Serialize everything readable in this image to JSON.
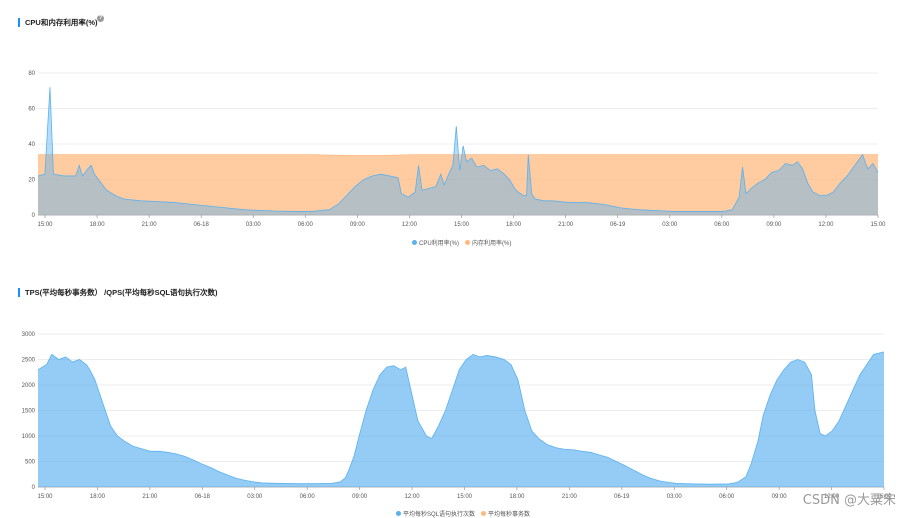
{
  "chart_data": [
    {
      "type": "area",
      "title": "CPU和内存利用率(%)",
      "ylim": [
        0,
        80
      ],
      "yticks": [
        0,
        20,
        40,
        60,
        80
      ],
      "x_tick_labels": [
        "15:00",
        "18:00",
        "21:00",
        "06-18",
        "03:00",
        "06:00",
        "09:00",
        "12:00",
        "15:00",
        "18:00",
        "21:00",
        "06-19",
        "03:00",
        "06:00",
        "09:00",
        "12:00",
        "15:00"
      ],
      "grid": true,
      "legend_placement": "bottom-center",
      "series": [
        {
          "name": "CPU利用率(%)",
          "color": "#5ab1ef",
          "points": [
            [
              0,
              22
            ],
            [
              0.4,
              23
            ],
            [
              0.7,
              72
            ],
            [
              0.9,
              23
            ],
            [
              1.5,
              22
            ],
            [
              2.2,
              22
            ],
            [
              2.4,
              28
            ],
            [
              2.6,
              22
            ],
            [
              2.9,
              26
            ],
            [
              3.1,
              28
            ],
            [
              3.3,
              23
            ],
            [
              3.6,
              19
            ],
            [
              4,
              14
            ],
            [
              4.5,
              11
            ],
            [
              5,
              9
            ],
            [
              6,
              8
            ],
            [
              7,
              7.5
            ],
            [
              8,
              7
            ],
            [
              9,
              6
            ],
            [
              10,
              5
            ],
            [
              11,
              4
            ],
            [
              12,
              3
            ],
            [
              13,
              2.5
            ],
            [
              14,
              2.2
            ],
            [
              15,
              2
            ],
            [
              16,
              2
            ],
            [
              17,
              3
            ],
            [
              17.5,
              6
            ],
            [
              18,
              11
            ],
            [
              18.5,
              16
            ],
            [
              19,
              20
            ],
            [
              19.5,
              22
            ],
            [
              20,
              23
            ],
            [
              20.5,
              22
            ],
            [
              21,
              21
            ],
            [
              21.2,
              12
            ],
            [
              21.6,
              10
            ],
            [
              22,
              13
            ],
            [
              22.2,
              28
            ],
            [
              22.4,
              14
            ],
            [
              22.8,
              15
            ],
            [
              23.2,
              16
            ],
            [
              23.5,
              23
            ],
            [
              23.7,
              17
            ],
            [
              24,
              24
            ],
            [
              24.2,
              28
            ],
            [
              24.4,
              50
            ],
            [
              24.6,
              25
            ],
            [
              24.8,
              39
            ],
            [
              25,
              30
            ],
            [
              25.3,
              32
            ],
            [
              25.6,
              27
            ],
            [
              26,
              28
            ],
            [
              26.4,
              25
            ],
            [
              26.8,
              26
            ],
            [
              27.2,
              23
            ],
            [
              27.5,
              20
            ],
            [
              27.8,
              15
            ],
            [
              28,
              13
            ],
            [
              28.3,
              11
            ],
            [
              28.5,
              11
            ],
            [
              28.6,
              34
            ],
            [
              28.8,
              12
            ],
            [
              29,
              9
            ],
            [
              29.5,
              8
            ],
            [
              30,
              8
            ],
            [
              31,
              7
            ],
            [
              32,
              7
            ],
            [
              33,
              6
            ],
            [
              34,
              4
            ],
            [
              35,
              3
            ],
            [
              36,
              2.5
            ],
            [
              37,
              2
            ],
            [
              38,
              2
            ],
            [
              39,
              2
            ],
            [
              40,
              2
            ],
            [
              40.5,
              3
            ],
            [
              40.9,
              10
            ],
            [
              41.1,
              27
            ],
            [
              41.3,
              12
            ],
            [
              41.6,
              15
            ],
            [
              42,
              18
            ],
            [
              42.4,
              20
            ],
            [
              42.8,
              24
            ],
            [
              43.2,
              25
            ],
            [
              43.6,
              29
            ],
            [
              44,
              28
            ],
            [
              44.3,
              30
            ],
            [
              44.6,
              26
            ],
            [
              44.9,
              18
            ],
            [
              45.2,
              13
            ],
            [
              45.6,
              11
            ],
            [
              46,
              11
            ],
            [
              46.4,
              13
            ],
            [
              46.8,
              18
            ],
            [
              47.2,
              22
            ],
            [
              47.5,
              26
            ],
            [
              47.8,
              30
            ],
            [
              48.1,
              34
            ],
            [
              48.4,
              26
            ],
            [
              48.7,
              29
            ],
            [
              49,
              24
            ]
          ]
        },
        {
          "name": "内存利用率(%)",
          "color": "#ffb980",
          "points": [
            [
              0,
              34
            ],
            [
              2,
              34
            ],
            [
              4,
              34
            ],
            [
              6,
              34
            ],
            [
              8,
              34
            ],
            [
              10,
              34
            ],
            [
              12,
              34
            ],
            [
              14,
              34
            ],
            [
              16,
              34
            ],
            [
              18,
              33.5
            ],
            [
              19,
              33.5
            ],
            [
              20,
              33.5
            ],
            [
              22,
              34
            ],
            [
              24,
              34
            ],
            [
              26,
              34
            ],
            [
              28,
              34
            ],
            [
              30,
              34
            ],
            [
              32,
              34
            ],
            [
              34,
              34
            ],
            [
              36,
              34
            ],
            [
              38,
              34
            ],
            [
              40,
              34
            ],
            [
              42,
              34
            ],
            [
              44,
              34
            ],
            [
              46,
              34
            ],
            [
              48,
              34
            ],
            [
              49,
              34
            ]
          ]
        }
      ]
    },
    {
      "type": "area",
      "title": "TPS(平均每秒事务数） /QPS(平均每秒SQL语句执行次数)",
      "ylim": [
        0,
        3000
      ],
      "yticks": [
        0,
        500,
        1000,
        1500,
        2000,
        2500,
        3000
      ],
      "x_tick_labels": [
        "15:00",
        "18:00",
        "21:00",
        "06-18",
        "03:00",
        "06:00",
        "09:00",
        "12:00",
        "15:00",
        "18:00",
        "21:00",
        "06-19",
        "03:00",
        "06:00",
        "09:00",
        "12:00",
        "15:00"
      ],
      "grid": true,
      "legend_placement": "bottom-center",
      "series": [
        {
          "name": "平均每秒SQL语句执行次数",
          "color": "#5ab1ef",
          "points": [
            [
              0,
              2300
            ],
            [
              0.5,
              2400
            ],
            [
              0.8,
              2600
            ],
            [
              1.2,
              2500
            ],
            [
              1.6,
              2550
            ],
            [
              2,
              2450
            ],
            [
              2.4,
              2500
            ],
            [
              2.8,
              2400
            ],
            [
              3,
              2300
            ],
            [
              3.3,
              2100
            ],
            [
              3.6,
              1800
            ],
            [
              3.9,
              1500
            ],
            [
              4.2,
              1200
            ],
            [
              4.6,
              1000
            ],
            [
              5,
              900
            ],
            [
              5.5,
              800
            ],
            [
              6,
              750
            ],
            [
              6.5,
              700
            ],
            [
              7,
              700
            ],
            [
              7.5,
              680
            ],
            [
              8,
              650
            ],
            [
              8.5,
              600
            ],
            [
              9,
              530
            ],
            [
              9.5,
              450
            ],
            [
              10,
              380
            ],
            [
              10.5,
              300
            ],
            [
              11,
              230
            ],
            [
              11.5,
              170
            ],
            [
              12,
              130
            ],
            [
              12.5,
              100
            ],
            [
              13,
              80
            ],
            [
              14,
              70
            ],
            [
              15,
              65
            ],
            [
              16,
              65
            ],
            [
              17,
              70
            ],
            [
              17.5,
              100
            ],
            [
              17.8,
              180
            ],
            [
              18,
              330
            ],
            [
              18.3,
              600
            ],
            [
              18.6,
              1000
            ],
            [
              19,
              1500
            ],
            [
              19.4,
              1900
            ],
            [
              19.8,
              2200
            ],
            [
              20.2,
              2350
            ],
            [
              20.6,
              2380
            ],
            [
              21,
              2300
            ],
            [
              21.3,
              2350
            ],
            [
              21.6,
              1900
            ],
            [
              22,
              1300
            ],
            [
              22.5,
              1000
            ],
            [
              22.8,
              950
            ],
            [
              23.2,
              1200
            ],
            [
              23.6,
              1500
            ],
            [
              24,
              1900
            ],
            [
              24.4,
              2300
            ],
            [
              24.8,
              2500
            ],
            [
              25.2,
              2600
            ],
            [
              25.6,
              2550
            ],
            [
              26,
              2580
            ],
            [
              26.5,
              2550
            ],
            [
              27,
              2500
            ],
            [
              27.4,
              2400
            ],
            [
              27.8,
              2100
            ],
            [
              28.2,
              1500
            ],
            [
              28.6,
              1100
            ],
            [
              29,
              950
            ],
            [
              29.5,
              830
            ],
            [
              30,
              770
            ],
            [
              30.5,
              740
            ],
            [
              31,
              730
            ],
            [
              31.5,
              700
            ],
            [
              32,
              680
            ],
            [
              32.5,
              630
            ],
            [
              33,
              580
            ],
            [
              33.5,
              500
            ],
            [
              34,
              420
            ],
            [
              34.5,
              330
            ],
            [
              35,
              240
            ],
            [
              35.5,
              170
            ],
            [
              36,
              120
            ],
            [
              36.5,
              90
            ],
            [
              37,
              70
            ],
            [
              38,
              60
            ],
            [
              39,
              55
            ],
            [
              40,
              60
            ],
            [
              40.5,
              90
            ],
            [
              41,
              200
            ],
            [
              41.3,
              450
            ],
            [
              41.7,
              900
            ],
            [
              42,
              1400
            ],
            [
              42.4,
              1800
            ],
            [
              42.8,
              2100
            ],
            [
              43.2,
              2300
            ],
            [
              43.6,
              2450
            ],
            [
              44,
              2500
            ],
            [
              44.4,
              2450
            ],
            [
              44.8,
              2200
            ],
            [
              45,
              1500
            ],
            [
              45.3,
              1050
            ],
            [
              45.6,
              1000
            ],
            [
              46,
              1100
            ],
            [
              46.4,
              1300
            ],
            [
              46.8,
              1600
            ],
            [
              47.2,
              1900
            ],
            [
              47.6,
              2200
            ],
            [
              48,
              2400
            ],
            [
              48.4,
              2600
            ],
            [
              49,
              2650
            ]
          ]
        },
        {
          "name": "平均每秒事务数",
          "color": "#ffb980",
          "points": []
        }
      ]
    }
  ],
  "watermark": "CSDN @大粟宋"
}
